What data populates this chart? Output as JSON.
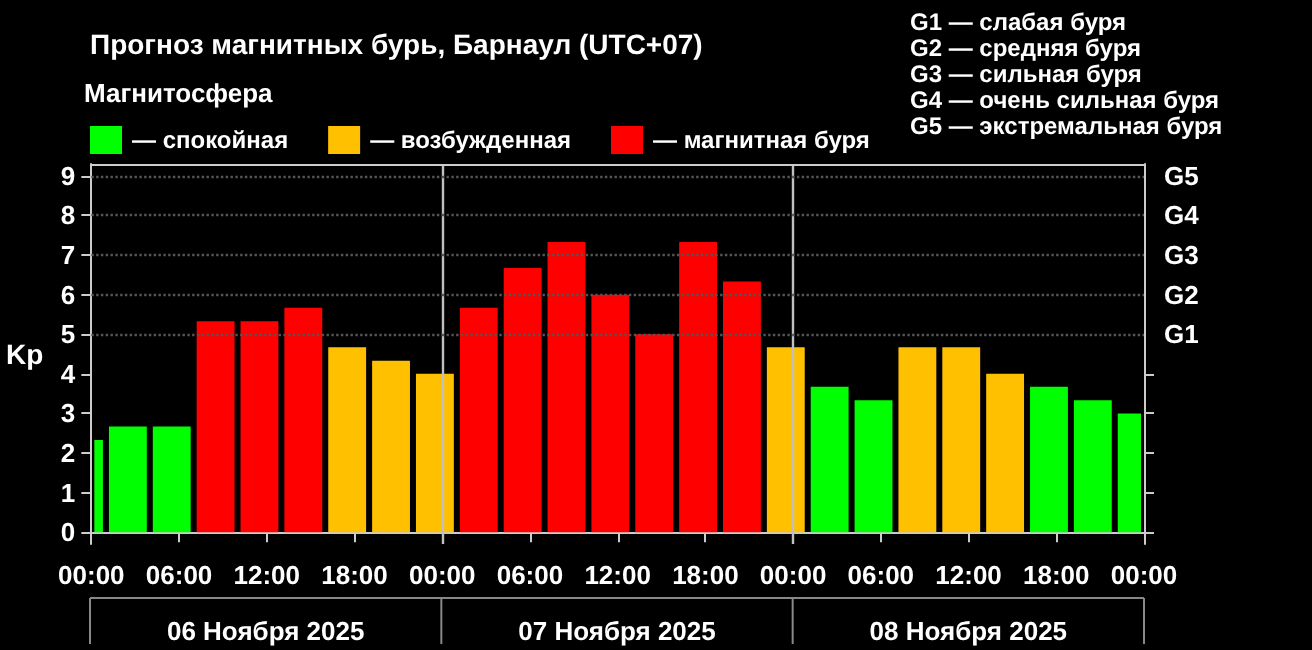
{
  "chart_data": {
    "type": "bar",
    "title": "Прогноз магнитных бурь, Барнаул (UTC+07)",
    "ylabel": "Kp",
    "legend_title": "Магнитосфера",
    "legend": "top left",
    "x": [
      "2025-11-06T00:30",
      "2025-11-06T02:30",
      "2025-11-06T05:30",
      "2025-11-06T08:30",
      "2025-11-06T11:30",
      "2025-11-06T14:30",
      "2025-11-06T17:30",
      "2025-11-06T20:30",
      "2025-11-06T23:30",
      "2025-11-07T02:30",
      "2025-11-07T05:30",
      "2025-11-07T08:30",
      "2025-11-07T11:30",
      "2025-11-07T14:30",
      "2025-11-07T17:30",
      "2025-11-07T20:30",
      "2025-11-07T23:30",
      "2025-11-08T02:30",
      "2025-11-08T05:30",
      "2025-11-08T08:30",
      "2025-11-08T11:30",
      "2025-11-08T14:30",
      "2025-11-08T17:30",
      "2025-11-08T20:30",
      "2025-11-08T23:00"
    ],
    "series": [
      {
        "name": "— спокойная",
        "color": "#00ff00",
        "values": [
          2.33,
          2.67,
          2.67,
          null,
          null,
          null,
          null,
          null,
          null,
          null,
          null,
          null,
          null,
          null,
          null,
          null,
          null,
          3.67,
          3.33,
          null,
          null,
          null,
          3.67,
          3.33,
          3.0
        ]
      },
      {
        "name": "— возбужденная",
        "color": "#ffc000",
        "values": [
          null,
          null,
          null,
          null,
          null,
          null,
          4.67,
          4.33,
          4.0,
          null,
          null,
          null,
          null,
          null,
          null,
          null,
          4.67,
          null,
          null,
          4.67,
          4.67,
          4.0,
          null,
          null,
          null
        ]
      },
      {
        "name": "— магнитная буря",
        "color": "#ff0000",
        "values": [
          null,
          null,
          null,
          5.33,
          5.33,
          5.67,
          null,
          null,
          null,
          5.67,
          6.67,
          7.33,
          6.0,
          5.0,
          7.33,
          6.33,
          null,
          null,
          null,
          null,
          null,
          null,
          null,
          null,
          null
        ]
      }
    ],
    "xlim": [
      "2025-11-06T00:00",
      "2025-11-09T00:00"
    ],
    "xticks": [
      {
        "value": "2025-11-06T00:00",
        "label": "00:00"
      },
      {
        "value": "2025-11-06T06:00",
        "label": "06:00"
      },
      {
        "value": "2025-11-06T12:00",
        "label": "12:00"
      },
      {
        "value": "2025-11-06T18:00",
        "label": "18:00"
      },
      {
        "value": "2025-11-07T00:00",
        "label": "00:00"
      },
      {
        "value": "2025-11-07T06:00",
        "label": "06:00"
      },
      {
        "value": "2025-11-07T12:00",
        "label": "12:00"
      },
      {
        "value": "2025-11-07T18:00",
        "label": "18:00"
      },
      {
        "value": "2025-11-08T00:00",
        "label": "00:00"
      },
      {
        "value": "2025-11-08T06:00",
        "label": "06:00"
      },
      {
        "value": "2025-11-08T12:00",
        "label": "12:00"
      },
      {
        "value": "2025-11-08T18:00",
        "label": "18:00"
      },
      {
        "value": "2025-11-09T00:00",
        "label": "00:00"
      }
    ],
    "ylim": [
      -0.3,
      9.3
    ],
    "yticks": [
      0,
      1,
      2,
      3,
      4,
      5,
      6,
      7,
      8,
      9
    ],
    "ref_lines": [
      {
        "axis": "x",
        "value": "2025-11-07T00:00",
        "color": "#c0c0c0"
      },
      {
        "axis": "x",
        "value": "2025-11-08T00:00",
        "color": "#c0c0c0"
      },
      {
        "axis": "y",
        "value": 5,
        "label": "G1",
        "color": "#555555",
        "line_style": "dotted"
      },
      {
        "axis": "y",
        "value": 6,
        "label": "G2",
        "color": "#555555",
        "line_style": "dotted"
      },
      {
        "axis": "y",
        "value": 7,
        "label": "G3",
        "color": "#555555",
        "line_style": "dotted"
      },
      {
        "axis": "y",
        "value": 8,
        "label": "G4",
        "color": "#555555",
        "line_style": "dotted"
      },
      {
        "axis": "y",
        "value": 9,
        "label": "G5",
        "color": "#555555",
        "line_style": "dotted"
      }
    ],
    "annotations": [
      "G1 — слабая буря",
      "G2 — средняя буря",
      "G3 — сильная буря",
      "G4 — очень сильная буря",
      "G5 — экстремальная буря",
      "06 Ноября 2025",
      "07 Ноября 2025",
      "08 Ноября 2025"
    ]
  }
}
